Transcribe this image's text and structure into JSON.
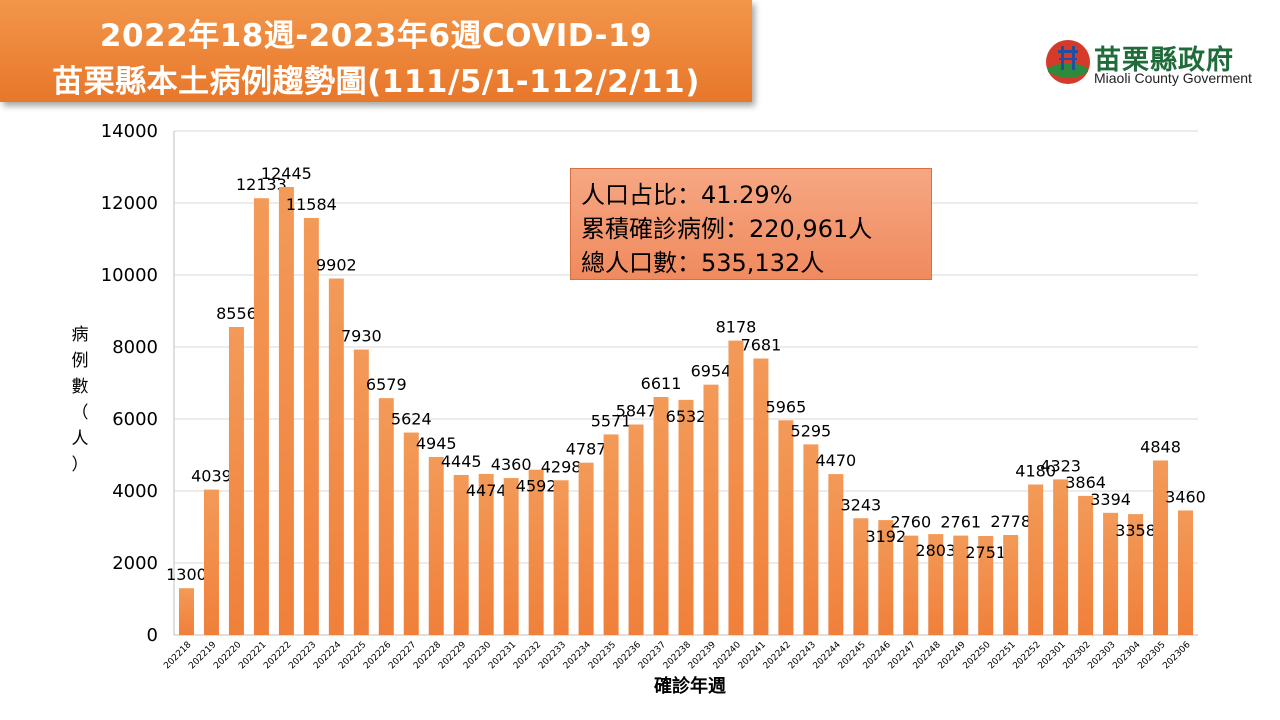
{
  "header": {
    "title_line1": "2022年18週-2023年6週COVID-19",
    "title_line2": "苗栗縣本土病例趨勢圖(111/5/1-112/2/11)"
  },
  "logo": {
    "name": "苗栗縣政府",
    "subtitle": "Miaoli County Goverment",
    "icon": "miaoli-county-emblem-icon"
  },
  "info": {
    "line1": "人口占比：41.29%",
    "line2": "累積確診病例：220,961人",
    "line3": "總人口數：535,132人"
  },
  "colors": {
    "bar": "#f0803a",
    "title_bg": "#ee8038",
    "info_bg": "#f39a72",
    "grid": "#d9d9d9"
  },
  "chart_data": {
    "type": "bar",
    "title": "2022年18週-2023年6週COVID-19 苗栗縣本土病例趨勢圖(111/5/1-112/2/11)",
    "xlabel": "確診年週",
    "ylabel": "病例數（人）",
    "ylim": [
      0,
      14000
    ],
    "yticks": [
      0,
      2000,
      4000,
      6000,
      8000,
      10000,
      12000,
      14000
    ],
    "grid": true,
    "legend": "none",
    "categories": [
      "202218",
      "202219",
      "202220",
      "202221",
      "202222",
      "202223",
      "202224",
      "202225",
      "202226",
      "202227",
      "202228",
      "202229",
      "202230",
      "202231",
      "202232",
      "202233",
      "202234",
      "202235",
      "202236",
      "202237",
      "202238",
      "202239",
      "202240",
      "202241",
      "202242",
      "202243",
      "202244",
      "202245",
      "202246",
      "202247",
      "202248",
      "202249",
      "202250",
      "202251",
      "202252",
      "202301",
      "202302",
      "202303",
      "202304",
      "202305",
      "202306"
    ],
    "values": [
      1300,
      4039,
      8556,
      12133,
      12445,
      11584,
      9902,
      7930,
      6579,
      5624,
      4945,
      4445,
      4474,
      4360,
      4592,
      4298,
      4787,
      5571,
      5847,
      6611,
      6532,
      6954,
      8178,
      7681,
      5965,
      5295,
      4470,
      3243,
      3192,
      2760,
      2803,
      2761,
      2751,
      2778,
      4180,
      4323,
      3864,
      3394,
      3358,
      4848,
      3460
    ],
    "label_placement": [
      "above",
      "above",
      "above",
      "above",
      "above",
      "above",
      "above",
      "above",
      "above",
      "above",
      "above",
      "above",
      "below",
      "above",
      "below",
      "above",
      "above",
      "above",
      "above",
      "above",
      "below",
      "above",
      "above",
      "above",
      "above",
      "above",
      "above",
      "above",
      "below",
      "above",
      "below",
      "above",
      "below",
      "above",
      "above",
      "above",
      "above",
      "above",
      "below",
      "above",
      "above"
    ]
  }
}
